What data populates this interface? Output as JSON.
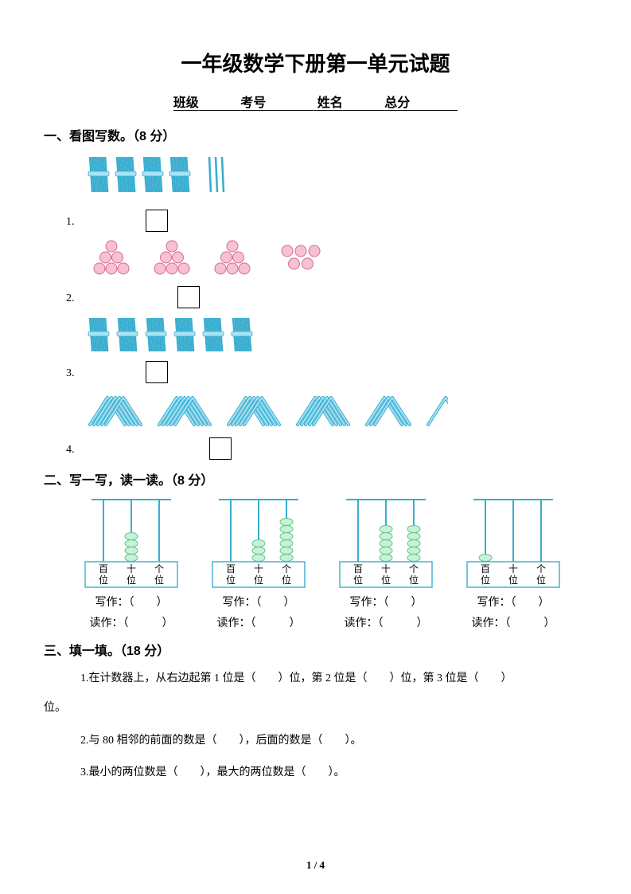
{
  "title": "一年级数学下册第一单元试题",
  "info": {
    "class_label": "班级",
    "id_label": "考号",
    "name_label": "姓名",
    "score_label": "总分"
  },
  "sections": {
    "s1": {
      "title": "一、看图写数。（8 分）"
    },
    "s2": {
      "title": "二、写一写，读一读。（8 分）"
    },
    "s3": {
      "title": "三、填一填。（18 分）"
    }
  },
  "q1": {
    "items": {
      "i1": {
        "num": "1.",
        "bundles": 4,
        "sticks": 3,
        "bundle_color": "#a8e3f5",
        "bundle_stroke": "#3aaed0",
        "stick_color": "#a8e3f5"
      },
      "i2": {
        "num": "2.",
        "triangles": 3,
        "triangle_rows": 3,
        "extra_circles": 5,
        "fill": "#f7c1d3",
        "stroke": "#d56a94",
        "extra_fill": "#f7c1d3",
        "extra_stroke": "#d56a94"
      },
      "i3": {
        "num": "3.",
        "bundles": 6,
        "bundle_color": "#a8e3f5",
        "bundle_stroke": "#3aaed0"
      },
      "i4": {
        "num": "4.",
        "group_sizes": [
          5,
          5,
          5,
          5,
          3,
          1
        ],
        "fill": "#a8e3f5",
        "stroke": "#3aaed0"
      }
    }
  },
  "q2": {
    "abacus": {
      "frame_stroke": "#3aaed0",
      "bead_fill": "#c8f1d8",
      "bead_stroke": "#63c788",
      "labels": {
        "hundred": "百",
        "ten": "十",
        "one": "个",
        "place": "位"
      },
      "units": [
        {
          "beads": [
            0,
            4,
            0
          ]
        },
        {
          "beads": [
            0,
            3,
            6
          ]
        },
        {
          "beads": [
            0,
            5,
            5
          ]
        },
        {
          "beads": [
            1,
            0,
            0
          ]
        }
      ]
    },
    "write_label": "写作：（　　）",
    "read_label": "读作：（　　　）"
  },
  "q3": {
    "l1a": "1.在计数器上，从右边起第 1 位是（　　）位，第 2 位是（　　）位，第 3 位是（　　）",
    "l1b": "位。",
    "l2": "2.与 80 相邻的前面的数是（　　），后面的数是（　　）。",
    "l3": "3.最小的两位数是（　　），最大的两位数是（　　）。"
  },
  "footer": {
    "page": "1 / 4"
  },
  "colors": {
    "text": "#000000",
    "box": "#000000",
    "bg": "#ffffff"
  }
}
